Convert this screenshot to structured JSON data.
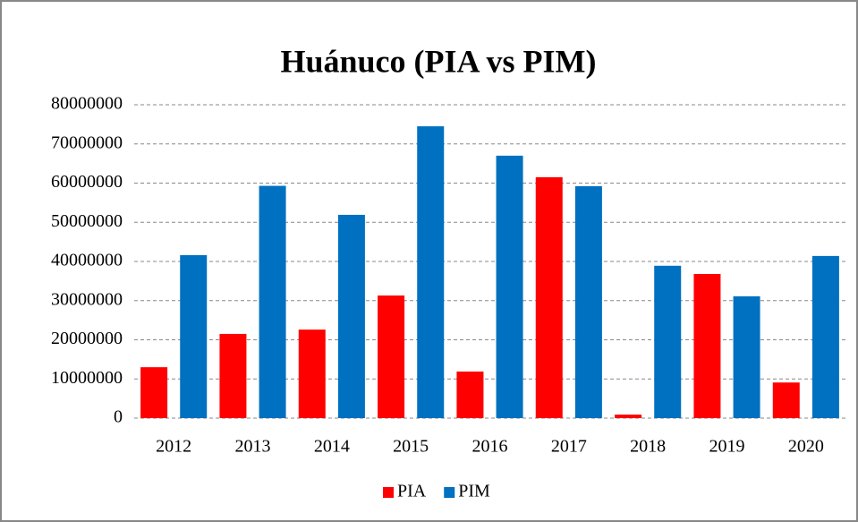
{
  "chart_data": {
    "type": "bar",
    "title": "Huánuco (PIA vs PIM)",
    "categories": [
      "2012",
      "2013",
      "2014",
      "2015",
      "2016",
      "2017",
      "2018",
      "2019",
      "2020"
    ],
    "series": [
      {
        "name": "PIA",
        "color": "#ff0000",
        "values": [
          13000000,
          21500000,
          22600000,
          31300000,
          11900000,
          61500000,
          900000,
          36800000,
          9100000
        ]
      },
      {
        "name": "PIM",
        "color": "#0070c0",
        "values": [
          41600000,
          59300000,
          51900000,
          74500000,
          67000000,
          59200000,
          38900000,
          31100000,
          41400000
        ]
      }
    ],
    "ylim": [
      0,
      80000000
    ],
    "yticks": [
      0,
      10000000,
      20000000,
      30000000,
      40000000,
      50000000,
      60000000,
      70000000,
      80000000
    ],
    "grid": true,
    "legend": "bottom"
  }
}
